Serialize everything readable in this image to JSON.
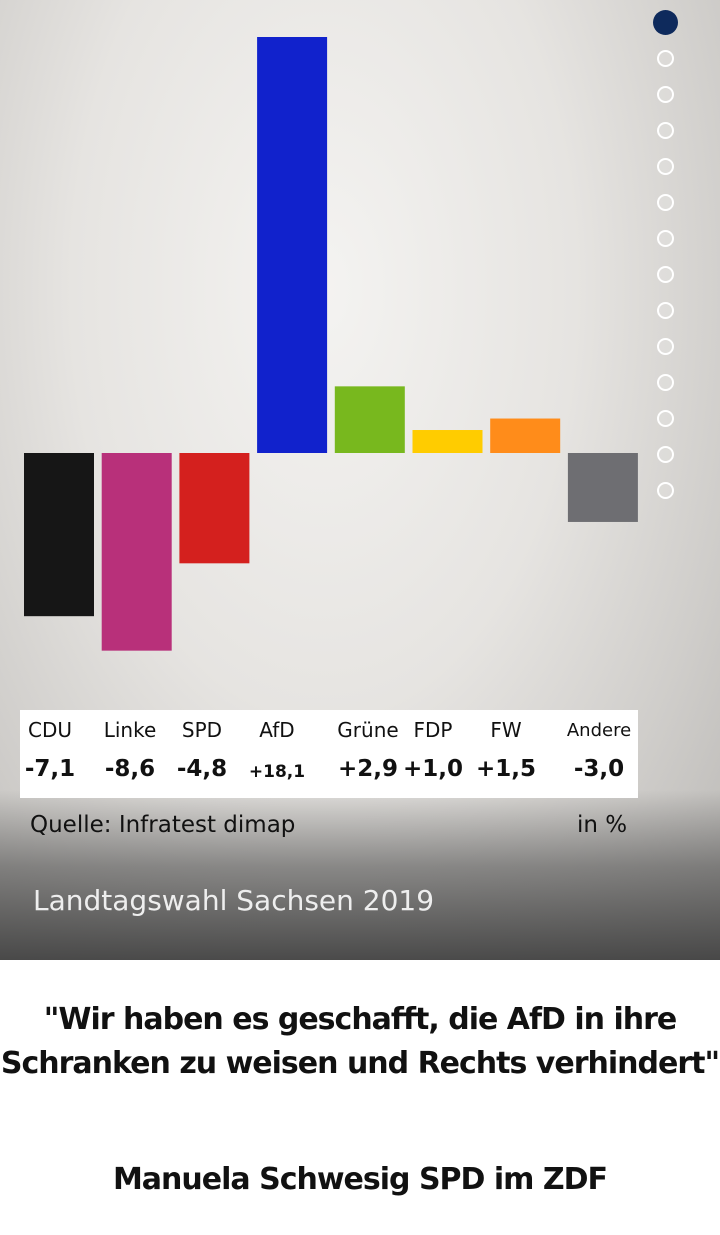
{
  "chart_data": {
    "type": "bar",
    "categories": [
      "CDU",
      "Linke",
      "SPD",
      "AfD",
      "Grüne",
      "FDP",
      "FW",
      "Andere"
    ],
    "value_labels": [
      "-7,1",
      "-8,6",
      "-4,8",
      "+18,1",
      "+2,9",
      "+1,0",
      "+1,5",
      "-3,0"
    ],
    "values": [
      -7.1,
      -8.6,
      -4.8,
      18.1,
      2.9,
      1.0,
      1.5,
      -3.0
    ],
    "colors": [
      "#161616",
      "#b8307a",
      "#d4201e",
      "#1122cc",
      "#78b81e",
      "#ffcc00",
      "#ff8c1a",
      "#6e6e72"
    ],
    "title": "Landtagswahl Sachsen 2019",
    "source": "Quelle: Infratest dimap",
    "unit": "in %",
    "ylim": [
      -8.6,
      18.1
    ]
  },
  "pagination": {
    "total": 14,
    "active_index": 0
  },
  "quote": {
    "line1": "\"Wir haben es geschafft, die AfD in ihre",
    "line2": "Schranken zu weisen und Rechts verhindert\""
  },
  "attribution": "Manuela Schwesig SPD im ZDF"
}
